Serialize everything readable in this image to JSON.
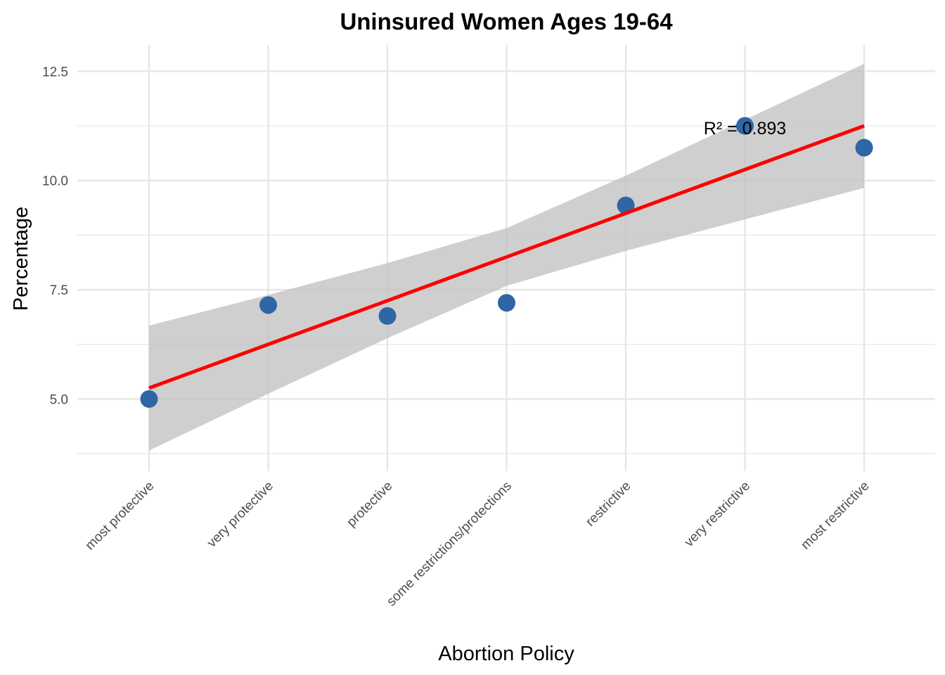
{
  "chart_data": {
    "type": "scatter",
    "title": "Uninsured Women Ages 19-64",
    "xlabel": "Abortion Policy",
    "ylabel": "Percentage",
    "categories": [
      "most protective",
      "very protective",
      "protective",
      "some restrictions/protections",
      "restrictive",
      "very restrictive",
      "most restrictive"
    ],
    "values": [
      5.0,
      7.15,
      6.9,
      7.2,
      9.43,
      11.25,
      10.75
    ],
    "yticks": [
      "5.0",
      "7.5",
      "10.0",
      "12.5"
    ],
    "ylim": [
      3.35,
      13.1
    ],
    "grid": true,
    "trendline": {
      "color": "#ff0000",
      "start": 5.25,
      "end": 11.25,
      "ci_lower": [
        3.82,
        5.12,
        6.39,
        7.59,
        8.39,
        9.11,
        9.83
      ],
      "ci_upper": [
        6.68,
        7.38,
        8.11,
        8.91,
        10.11,
        11.39,
        12.67
      ]
    },
    "annotation": {
      "text": "R² = 0.893",
      "x": 5,
      "y": 11.2
    },
    "colors": {
      "point": "#2f66a5",
      "ribbon": "#bfbfbf",
      "grid": "#e6e6e6"
    }
  }
}
